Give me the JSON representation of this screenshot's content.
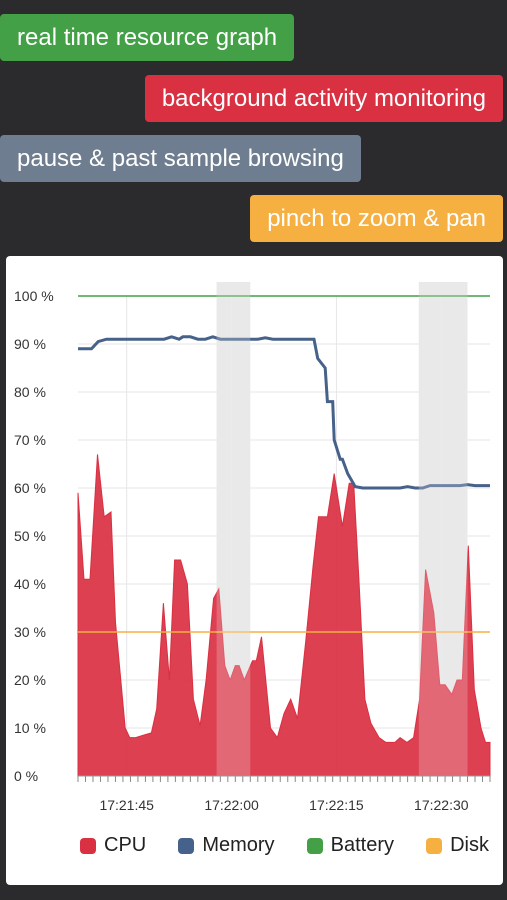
{
  "features": [
    {
      "label": "real time resource graph",
      "color": "#43a047"
    },
    {
      "label": "background activity monitoring",
      "color": "#d93042"
    },
    {
      "label": "pause & past sample browsing",
      "color": "#6e7d8f"
    },
    {
      "label": "pinch to zoom & pan",
      "color": "#f5b041"
    }
  ],
  "chart_data": {
    "type": "area",
    "y_tick_labels": [
      "0 %",
      "10 %",
      "20 %",
      "30 %",
      "40 %",
      "50 %",
      "60 %",
      "70 %",
      "80 %",
      "90 %",
      "100 %"
    ],
    "ylim": [
      0,
      100
    ],
    "xlim": [
      0,
      55
    ],
    "x_tick_labels": [
      "17:21:45",
      "17:22:00",
      "17:22:15",
      "17:22:30"
    ],
    "x_tick_values": [
      6.5,
      20.5,
      34.5,
      48.5
    ],
    "grid": true,
    "highlight_ranges": [
      [
        18.5,
        23
      ],
      [
        45.5,
        52
      ]
    ],
    "series": [
      {
        "name": "CPU",
        "type": "area",
        "color": "#d93042",
        "x": [
          0,
          0.8,
          1.6,
          2.6,
          3.5,
          4.4,
          5,
          6.3,
          6.9,
          7.7,
          8.7,
          9.8,
          10.5,
          11.4,
          12.2,
          12.9,
          13.7,
          14.6,
          15.4,
          16.3,
          17.1,
          18.1,
          18.8,
          19.6,
          20.3,
          21.0,
          21.5,
          22.2,
          23.3,
          23.8,
          24.5,
          25.7,
          26.6,
          27.5,
          28.4,
          29.3,
          30.4,
          31.4,
          32.1,
          33.3,
          34.2,
          35.3,
          36.2,
          36.8,
          37.5,
          38.3,
          39.1,
          40.2,
          41.1,
          42.3,
          43.0,
          43.9,
          44.8,
          45.6,
          46.4,
          47.5,
          48.3,
          49.0,
          49.9,
          50.6,
          51.3,
          52.1,
          52.9,
          53.8,
          54.4,
          55
        ],
        "y": [
          59,
          41,
          41,
          67,
          54,
          55,
          32,
          10,
          8,
          8,
          8.5,
          9,
          14,
          36,
          20,
          45,
          45,
          40,
          16,
          10.5,
          20,
          37,
          39,
          23,
          20,
          23,
          23,
          20,
          24,
          24,
          29,
          10,
          8,
          13,
          16,
          12,
          28,
          44,
          54,
          54,
          63,
          52,
          61,
          61,
          41,
          16,
          11,
          8,
          7,
          7,
          8,
          7,
          8,
          16,
          43,
          34,
          19,
          19,
          17,
          20,
          20,
          48,
          18,
          10,
          7,
          7
        ]
      },
      {
        "name": "Memory",
        "type": "line",
        "color": "#47628a",
        "x": [
          0,
          1.3,
          1.8,
          2.7,
          3.8,
          5,
          6,
          7.5,
          9,
          10,
          11,
          11.5,
          12.5,
          13.5,
          14,
          15,
          16,
          17,
          18,
          19,
          20,
          21,
          22,
          23,
          24,
          25,
          26,
          27,
          28,
          29,
          30,
          30.8,
          31.5,
          32,
          33,
          33.3,
          34,
          34.2,
          35,
          35.3,
          36,
          37,
          38,
          39,
          40,
          41,
          42,
          43,
          44,
          45,
          46,
          47,
          48,
          49,
          50,
          51,
          52,
          53,
          54,
          55
        ],
        "y": [
          89,
          89,
          89,
          90.5,
          91,
          91,
          91,
          91,
          91,
          91,
          91,
          91,
          91.5,
          91,
          91.5,
          91.5,
          91,
          91,
          91.5,
          91,
          91,
          91,
          91,
          91,
          91,
          91.3,
          91,
          91,
          91,
          91,
          91,
          91,
          91,
          87,
          85,
          78,
          78,
          70,
          66,
          66,
          63,
          60.3,
          60,
          60,
          60,
          60,
          60,
          60,
          60.3,
          60,
          60,
          60.5,
          60.5,
          60.5,
          60.5,
          60.5,
          60.7,
          60.5,
          60.5,
          60.5
        ]
      },
      {
        "name": "Battery",
        "type": "line",
        "color": "#43a047",
        "x": [
          0,
          55
        ],
        "y": [
          100,
          100
        ]
      },
      {
        "name": "Disk",
        "type": "line",
        "color": "#f5b041",
        "x": [
          0,
          55
        ],
        "y": [
          30,
          30
        ]
      }
    ]
  }
}
